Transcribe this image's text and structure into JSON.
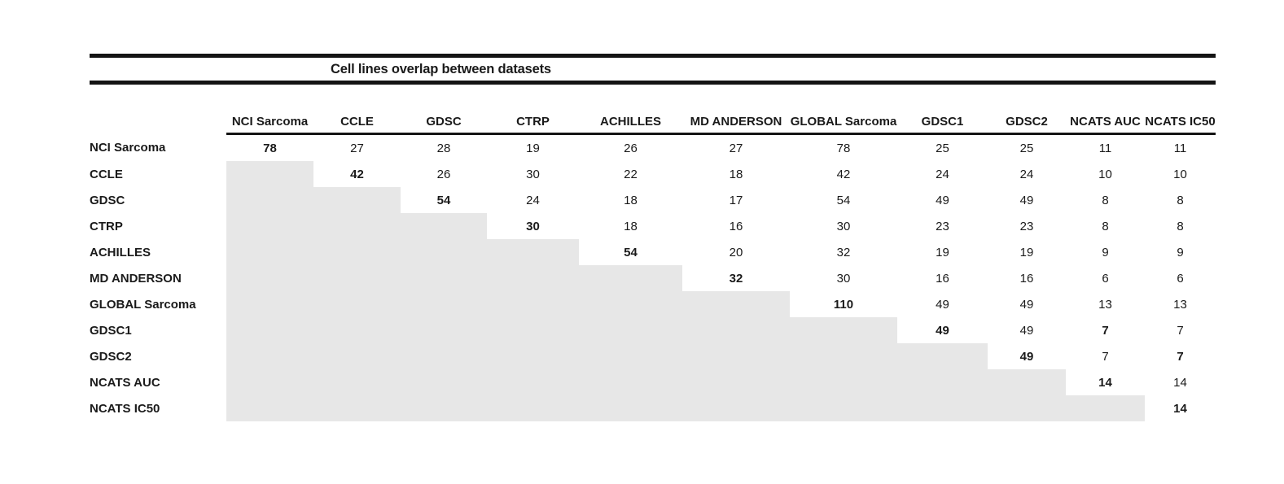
{
  "chart_data": {
    "type": "table",
    "title": "Cell lines overlap between datasets",
    "columns": [
      "NCI Sarcoma",
      "CCLE",
      "GDSC",
      "CTRP",
      "ACHILLES",
      "MD ANDERSON",
      "GLOBAL Sarcoma",
      "GDSC1",
      "GDSC2",
      "NCATS AUC",
      "NCATS IC50"
    ],
    "rows": [
      {
        "label": "NCI Sarcoma",
        "values": [
          "78",
          "27",
          "28",
          "19",
          "26",
          "27",
          "78",
          "25",
          "25",
          "11",
          "11"
        ],
        "bold_cols": [
          0
        ]
      },
      {
        "label": "CCLE",
        "values": [
          null,
          "42",
          "26",
          "30",
          "22",
          "18",
          "42",
          "24",
          "24",
          "10",
          "10"
        ],
        "bold_cols": [
          1
        ]
      },
      {
        "label": "GDSC",
        "values": [
          null,
          null,
          "54",
          "24",
          "18",
          "17",
          "54",
          "49",
          "49",
          "8",
          "8"
        ],
        "bold_cols": [
          2
        ]
      },
      {
        "label": "CTRP",
        "values": [
          null,
          null,
          null,
          "30",
          "18",
          "16",
          "30",
          "23",
          "23",
          "8",
          "8"
        ],
        "bold_cols": [
          3
        ]
      },
      {
        "label": "ACHILLES",
        "values": [
          null,
          null,
          null,
          null,
          "54",
          "20",
          "32",
          "19",
          "19",
          "9",
          "9"
        ],
        "bold_cols": [
          4
        ]
      },
      {
        "label": "MD ANDERSON",
        "values": [
          null,
          null,
          null,
          null,
          null,
          "32",
          "30",
          "16",
          "16",
          "6",
          "6"
        ],
        "bold_cols": [
          5
        ]
      },
      {
        "label": "GLOBAL Sarcoma",
        "values": [
          null,
          null,
          null,
          null,
          null,
          null,
          "110",
          "49",
          "49",
          "13",
          "13"
        ],
        "bold_cols": [
          6
        ]
      },
      {
        "label": "GDSC1",
        "values": [
          null,
          null,
          null,
          null,
          null,
          null,
          null,
          "49",
          "49",
          "7",
          "7"
        ],
        "bold_cols": [
          7,
          9
        ]
      },
      {
        "label": "GDSC2",
        "values": [
          null,
          null,
          null,
          null,
          null,
          null,
          null,
          null,
          "49",
          "7",
          "7"
        ],
        "bold_cols": [
          8,
          10
        ]
      },
      {
        "label": "NCATS AUC",
        "values": [
          null,
          null,
          null,
          null,
          null,
          null,
          null,
          null,
          null,
          "14",
          "14"
        ],
        "bold_cols": [
          9
        ]
      },
      {
        "label": "NCATS IC50",
        "values": [
          null,
          null,
          null,
          null,
          null,
          null,
          null,
          null,
          null,
          null,
          "14"
        ],
        "bold_cols": [
          10
        ]
      }
    ],
    "shaded_region": "lower-triangle",
    "shade_color": "#e7e7e7",
    "rule_color": "#141414"
  }
}
